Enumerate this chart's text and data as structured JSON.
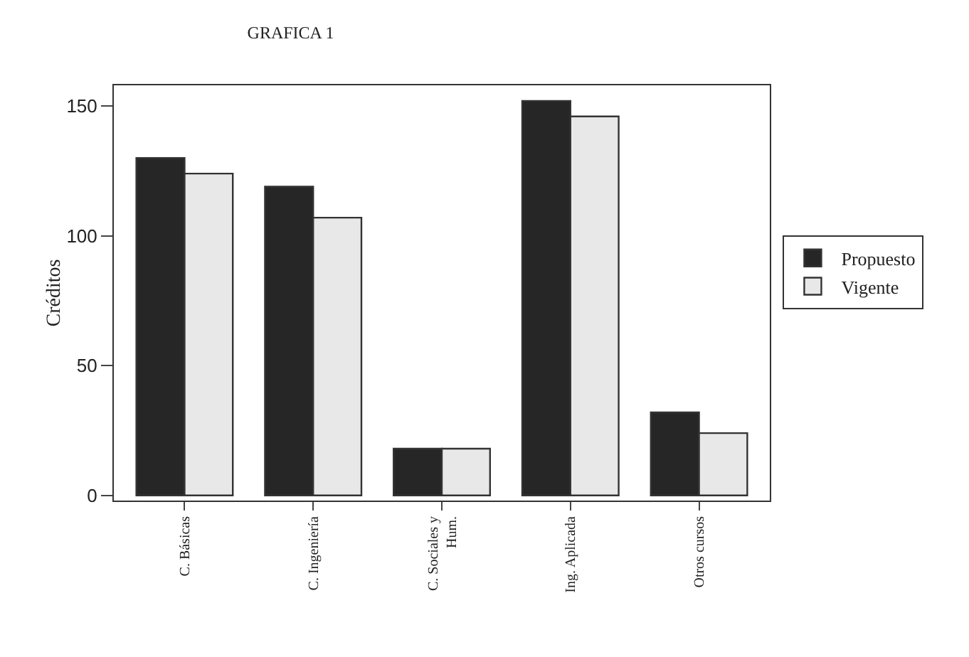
{
  "chart_data": {
    "type": "bar",
    "title": "GRAFICA 1",
    "ylabel": "Créditos",
    "categories": [
      "C. Básicas",
      "C. Ingeniería",
      "C. Sociales y\nHum.",
      "Ing. Aplicada",
      "Otros cursos"
    ],
    "series": [
      {
        "name": "Propuesto",
        "color": "#262626",
        "values": [
          130,
          119,
          18,
          152,
          32
        ]
      },
      {
        "name": "Vigente",
        "color": "#e8e8e8",
        "values": [
          124,
          107,
          18,
          146,
          24
        ]
      }
    ],
    "ylim": [
      -2,
      158
    ],
    "yticks": [
      0,
      50,
      100,
      150
    ],
    "grid": false,
    "legend": "right"
  }
}
